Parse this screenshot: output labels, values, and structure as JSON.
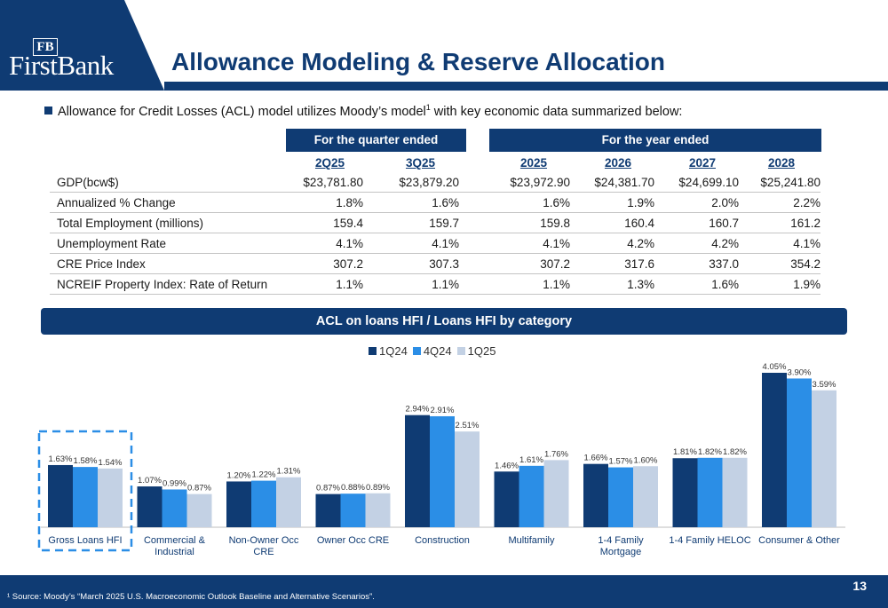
{
  "header": {
    "bank_name": "FirstBank",
    "monogram": "FB",
    "title": "Allowance Modeling & Reserve Allocation"
  },
  "intro": {
    "text_before": "Allowance for Credit Losses (ACL) model utilizes Moody’s model",
    "superscript": "1",
    "text_after": " with key economic data summarized below:"
  },
  "econ_table": {
    "quarter_header": "For the quarter ended",
    "year_header": "For the year ended",
    "columns": [
      "2Q25",
      "3Q25",
      "2025",
      "2026",
      "2027",
      "2028"
    ],
    "rows": [
      {
        "label": "GDP(bcw$)",
        "values": [
          "$23,781.80",
          "$23,879.20",
          "$23,972.90",
          "$24,381.70",
          "$24,699.10",
          "$25,241.80"
        ]
      },
      {
        "label": "Annualized % Change",
        "values": [
          "1.8%",
          "1.6%",
          "1.6%",
          "1.9%",
          "2.0%",
          "2.2%"
        ]
      },
      {
        "label": "Total Employment (millions)",
        "values": [
          "159.4",
          "159.7",
          "159.8",
          "160.4",
          "160.7",
          "161.2"
        ]
      },
      {
        "label": "Unemployment Rate",
        "values": [
          "4.1%",
          "4.1%",
          "4.1%",
          "4.2%",
          "4.2%",
          "4.1%"
        ]
      },
      {
        "label": "CRE Price Index",
        "values": [
          "307.2",
          "307.3",
          "307.2",
          "317.6",
          "337.0",
          "354.2"
        ]
      },
      {
        "label": "NCREIF Property Index: Rate of Return",
        "values": [
          "1.1%",
          "1.1%",
          "1.1%",
          "1.3%",
          "1.6%",
          "1.9%"
        ]
      }
    ]
  },
  "acl_banner": "ACL on loans HFI / Loans HFI by category",
  "chart_data": {
    "type": "bar",
    "title": "ACL on loans HFI / Loans HFI by category",
    "categories": [
      [
        "Gross Loans HFI"
      ],
      [
        "Commercial &",
        "Industrial"
      ],
      [
        "Non-Owner Occ",
        "CRE"
      ],
      [
        "Owner Occ CRE"
      ],
      [
        "Construction"
      ],
      [
        "Multifamily"
      ],
      [
        "1-4 Family",
        "Mortgage"
      ],
      [
        "1-4 Family HELOC"
      ],
      [
        "Consumer & Other"
      ]
    ],
    "series": [
      {
        "name": "1Q24",
        "color": "#0f3b73",
        "values": [
          1.63,
          1.07,
          1.2,
          0.87,
          2.94,
          1.46,
          1.66,
          1.81,
          4.05
        ]
      },
      {
        "name": "4Q24",
        "color": "#2b8ee6",
        "values": [
          1.58,
          0.99,
          1.22,
          0.88,
          2.91,
          1.61,
          1.57,
          1.82,
          3.9
        ]
      },
      {
        "name": "1Q25",
        "color": "#c3d1e4",
        "values": [
          1.54,
          0.87,
          1.31,
          0.89,
          2.51,
          1.76,
          1.6,
          1.82,
          3.59
        ]
      }
    ],
    "value_suffix": "%",
    "legend_position": "top-center",
    "highlighted_category": "Gross Loans HFI",
    "ylim": [
      0,
      4.05
    ]
  },
  "footer": {
    "footnote": "¹ Source: Moody’s “March 2025 U.S. Macroeconomic Outlook Baseline and Alternative Scenarios”.",
    "page_number": "13"
  }
}
